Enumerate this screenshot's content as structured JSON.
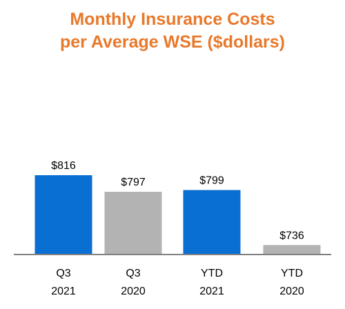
{
  "chart_data": {
    "type": "bar",
    "title_line1": "Monthly Insurance Costs",
    "title_line2": "per Average WSE ($dollars)",
    "categories": [
      {
        "line1": "Q3",
        "line2": "2021"
      },
      {
        "line1": "Q3",
        "line2": "2020"
      },
      {
        "line1": "YTD",
        "line2": "2021"
      },
      {
        "line1": "YTD",
        "line2": "2020"
      }
    ],
    "values": [
      816,
      797,
      799,
      736
    ],
    "value_labels": [
      "$816",
      "$797",
      "$799",
      "$736"
    ],
    "bar_colors": [
      "#0a6fd3",
      "#b3b3b3",
      "#0a6fd3",
      "#b3b3b3"
    ],
    "grid": false,
    "legend": "none"
  },
  "colors": {
    "title": "#e8792b",
    "axis": "#808080"
  }
}
